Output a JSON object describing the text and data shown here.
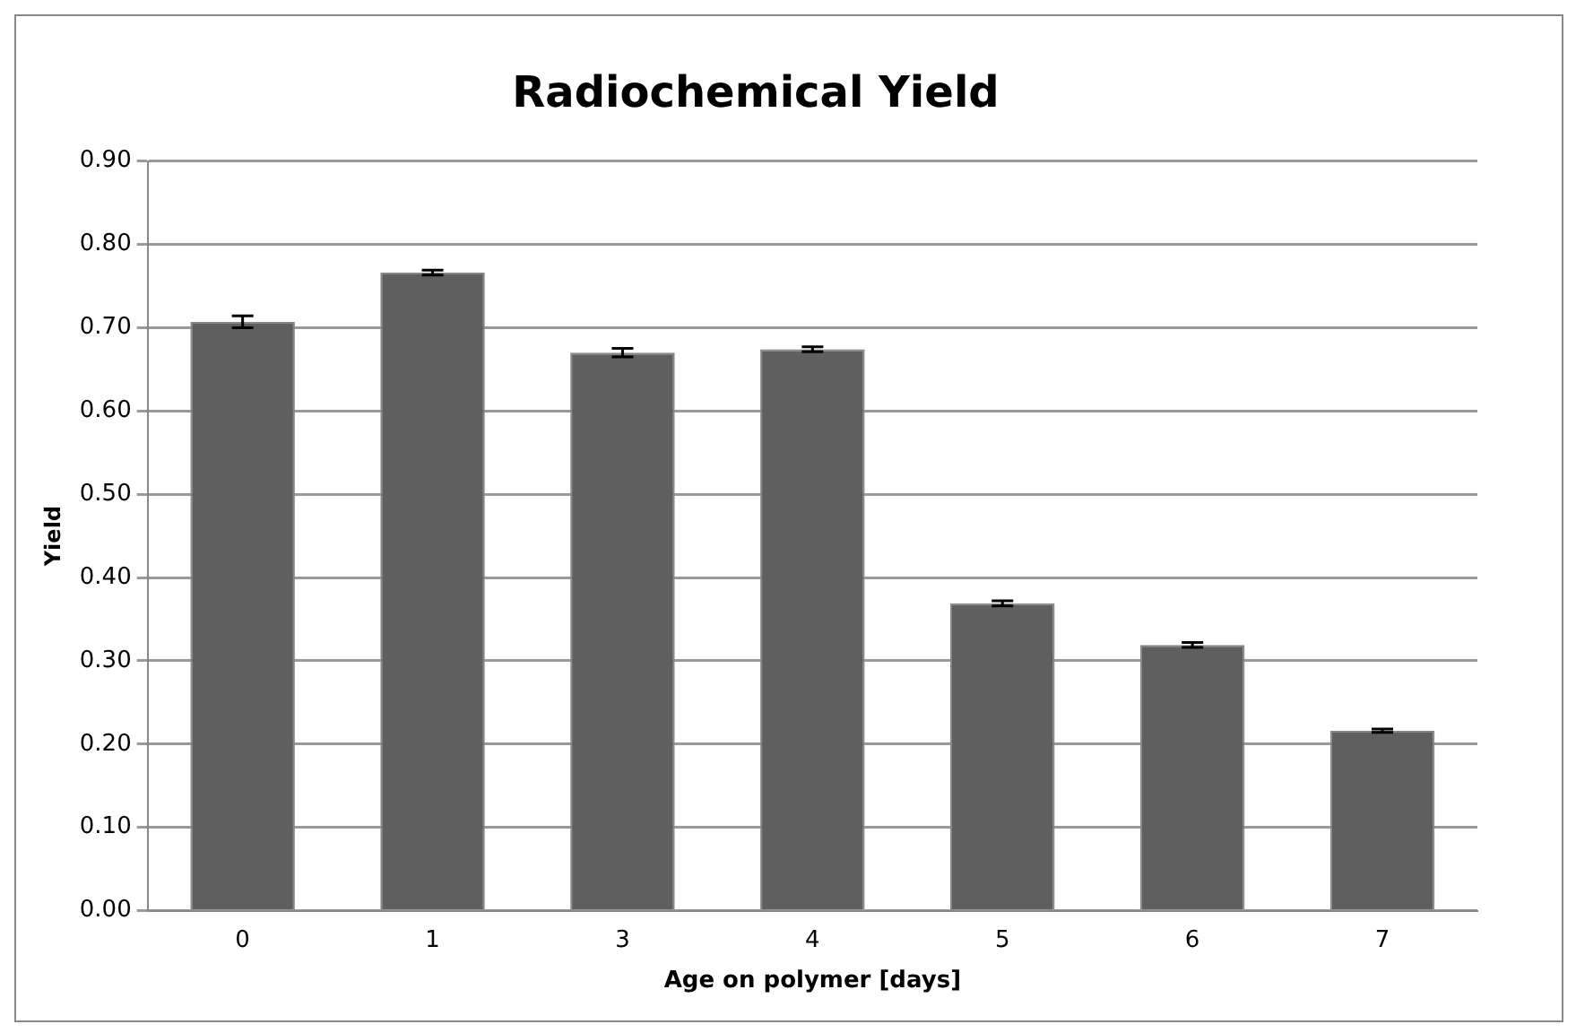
{
  "chart_data": {
    "type": "bar",
    "title": "Radiochemical Yield",
    "xlabel": "Age on polymer [days]",
    "ylabel": "Yield",
    "categories": [
      "0",
      "1",
      "3",
      "4",
      "5",
      "6",
      "7"
    ],
    "values": [
      0.707,
      0.766,
      0.67,
      0.674,
      0.369,
      0.319,
      0.216
    ],
    "errors": [
      0.007,
      0.003,
      0.005,
      0.003,
      0.003,
      0.003,
      0.002
    ],
    "color": "#5f5f5f",
    "ylim": [
      0,
      0.9
    ],
    "yticks": [
      {
        "value": 0,
        "label": "0.00"
      },
      {
        "value": 0.1,
        "label": "0.10"
      },
      {
        "value": 0.2,
        "label": "0.20"
      },
      {
        "value": 0.3,
        "label": "0.30"
      },
      {
        "value": 0.4,
        "label": "0.40"
      },
      {
        "value": 0.5,
        "label": "0.50"
      },
      {
        "value": 0.6,
        "label": "0.60"
      },
      {
        "value": 0.7,
        "label": "0.70"
      },
      {
        "value": 0.8,
        "label": "0.80"
      },
      {
        "value": 0.9,
        "label": "0.90"
      }
    ],
    "grid": "y"
  }
}
